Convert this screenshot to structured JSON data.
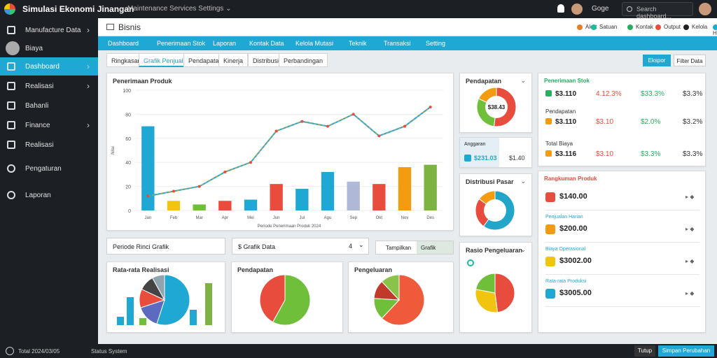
{
  "app": {
    "title": "Simulasi Ekonomi Jinangan",
    "menu": "Maintenance Services Settings ⌄",
    "user": "Goge",
    "search_placeholder": "Search dashboard..."
  },
  "sidebar": {
    "items": [
      {
        "label": "Manufacture Data",
        "icon": "sliders-icon",
        "active": false
      },
      {
        "label": "Biaya",
        "icon": "user-avatar",
        "active": false
      },
      {
        "label": "Dashboard",
        "icon": "home-icon",
        "active": true
      },
      {
        "label": "Realisasi",
        "icon": "building-icon",
        "active": false
      },
      {
        "label": "Bahanli",
        "icon": "upload-icon",
        "active": false
      },
      {
        "label": "Finance",
        "icon": "box-icon",
        "active": false
      },
      {
        "label": "Realisasi",
        "icon": "calendar-icon",
        "active": false
      },
      {
        "label": "Pengaturan",
        "icon": "circle-icon",
        "active": false
      },
      {
        "label": "Laporan",
        "icon": "info-icon",
        "active": false
      }
    ]
  },
  "header": {
    "breadcrumb": "Bisnis",
    "icons": [
      {
        "label": "Alert",
        "color": "#e67e22"
      },
      {
        "label": "Satuan",
        "color": "#1abc9c"
      },
      {
        "label": "Kontak",
        "color": "#27ae60"
      },
      {
        "label": "Output",
        "color": "#e74c3c"
      },
      {
        "label": "Kelola",
        "color": "#222222"
      },
      {
        "label": "Help",
        "color": "#1fa8d4"
      }
    ]
  },
  "tabbar": [
    "Dashboard",
    "Penerimaan Stok",
    "Laporan",
    "Kontak Data",
    "Kelola Mutasi",
    "Teknik",
    "Transaksi",
    "Setting"
  ],
  "subtabs": [
    "Ringkasan",
    "Grafik Penjualan",
    "Pendapatan",
    "Kinerja",
    "Distribusi",
    "Perbandingan"
  ],
  "buttons": {
    "primary": "Ekspor",
    "secondary": "Filter Data"
  },
  "main_chart": {
    "title": "Penerimaan Produk",
    "xlabel": "Periode Penerimaan Produk 2024",
    "ylabel": "Nilai",
    "categories": [
      "Jan",
      "Feb",
      "Mar",
      "Apr",
      "Mei",
      "Jun",
      "Jul",
      "Agu",
      "Sep",
      "Okt",
      "Nov",
      "Des"
    ],
    "bars": [
      70,
      8,
      5,
      8,
      9,
      22,
      18,
      32,
      24,
      22,
      36,
      38
    ],
    "line": [
      12,
      16,
      20,
      32,
      40,
      66,
      74,
      70,
      80,
      62,
      70,
      86
    ],
    "ylim": [
      0,
      100
    ]
  },
  "donut1": {
    "title": "Pendapatan",
    "value": "$38.43",
    "slices": [
      {
        "v": 0.52,
        "c": "#e74c3c"
      },
      {
        "v": 0.3,
        "c": "#6fbf3a"
      },
      {
        "v": 0.18,
        "c": "#f39c12"
      }
    ]
  },
  "kpi_small": {
    "label": "Anggaran",
    "v1": "$231.03",
    "v2": "$1.40"
  },
  "donut2": {
    "title": "Distribusi Pasar",
    "slices": [
      {
        "v": 0.6,
        "c": "#21a6c9"
      },
      {
        "v": 0.25,
        "c": "#e74c3c"
      },
      {
        "v": 0.15,
        "c": "#f39c12"
      }
    ]
  },
  "donut3": {
    "title": "Rasio Pengeluaran",
    "slices": [
      {
        "v": 0.48,
        "c": "#e74c3c"
      },
      {
        "v": 0.3,
        "c": "#f1c40f"
      },
      {
        "v": 0.22,
        "c": "#6fbf3a"
      }
    ]
  },
  "kpi_table": {
    "title": "Penerimaan Stok",
    "rows": [
      {
        "label": "",
        "v1": "$3.110",
        "v2": "4.12.3%",
        "v3": "$33.3%",
        "v4": "$3.3%",
        "color": "#27ae60"
      },
      {
        "label": "Pendapatan",
        "v1": "$3.110",
        "v2": "$3.10",
        "v3": "$2.0%",
        "v4": "$3.2%",
        "color": "#f39c12"
      },
      {
        "label": "Total Biaya",
        "v1": "$3.116",
        "v2": "$3.10",
        "v3": "$3.3%",
        "v4": "$3.3%",
        "color": "#f39c12"
      }
    ]
  },
  "list_panel": {
    "title": "Rangkuman Produk",
    "rows": [
      {
        "head": "",
        "value": "$140.00",
        "color": "#e74c3c"
      },
      {
        "head": "Penjualan Harian",
        "value": "$200.00",
        "color": "#f39c12"
      },
      {
        "head": "Biaya Operasional",
        "value": "$3002.00",
        "color": "#f1c40f"
      },
      {
        "head": "Rata-rata Produksi",
        "value": "$3005.00",
        "color": "#1fa8d4"
      }
    ]
  },
  "filters": {
    "left": "Periode Rinci Grafik",
    "mid": "$ Grafik Data",
    "mid_count": "4",
    "right_a": "Tampilkan",
    "right_b": "Grafik"
  },
  "bottom_cards": [
    {
      "title": "Rata-rata Realisasi",
      "bars": [
        {
          "v": 12,
          "c": "#1fa8d4"
        },
        {
          "v": 40,
          "c": "#1fa8d4"
        },
        {
          "v": 10,
          "c": "#6fbf3a"
        },
        {
          "v": 22,
          "c": "#1fa8d4"
        },
        {
          "v": 60,
          "c": "#7cb342"
        }
      ],
      "pie": [
        {
          "v": 0.55,
          "c": "#1fa8d4"
        },
        {
          "v": 0.15,
          "c": "#5c6bc0"
        },
        {
          "v": 0.12,
          "c": "#e74c3c"
        },
        {
          "v": 0.1,
          "c": "#444444"
        },
        {
          "v": 0.08,
          "c": "#90a4ae"
        }
      ]
    },
    {
      "title": "Pendapatan",
      "pie": [
        {
          "v": 0.58,
          "c": "#6fbf3a"
        },
        {
          "v": 0.42,
          "c": "#e74c3c"
        }
      ]
    },
    {
      "title": "Pengeluaran",
      "pie": [
        {
          "v": 0.62,
          "c": "#ef5a3a"
        },
        {
          "v": 0.14,
          "c": "#6fbf3a"
        },
        {
          "v": 0.12,
          "c": "#c0392b"
        },
        {
          "v": 0.12,
          "c": "#8bc34a"
        }
      ]
    }
  ],
  "statusbar": {
    "left": "Total 2024/03/05",
    "mid": "Status System",
    "btn1": "Tutup",
    "btn2": "Simpan Perubahan"
  }
}
